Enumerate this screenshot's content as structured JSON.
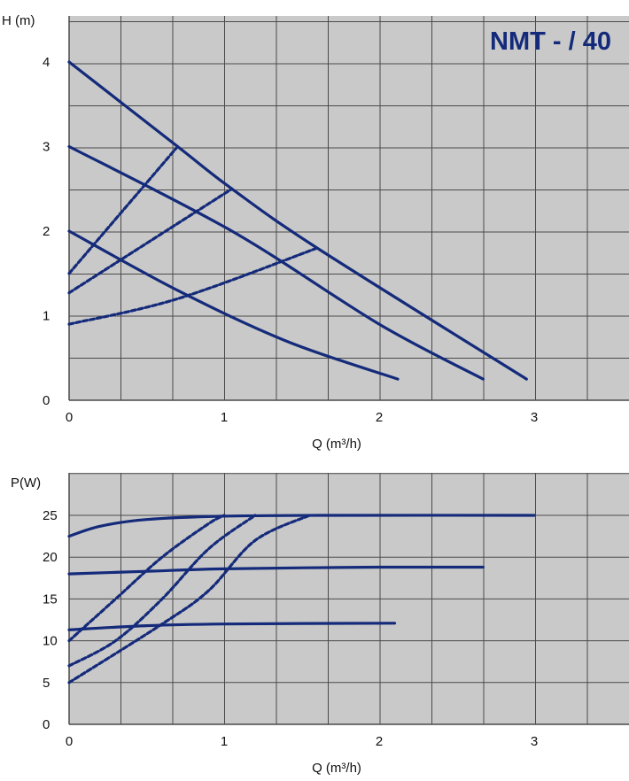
{
  "colors": {
    "plot_bg": "#c9c9c9",
    "grid": "#4a4a4a",
    "curve": "#142a7a",
    "text": "#111111"
  },
  "chart_data": [
    {
      "type": "line",
      "title": "NMT - / 40",
      "ylabel": "H (m)",
      "xlabel": "Q (m³/h)",
      "xlim": [
        0,
        3.6
      ],
      "ylim": [
        0,
        4.2
      ],
      "x_ticks": [
        "0",
        "1",
        "2",
        "3"
      ],
      "y_ticks": [
        "0",
        "1",
        "2",
        "3",
        "4"
      ],
      "grid": true,
      "series": [
        {
          "style": "solid",
          "points": [
            [
              0,
              4.0
            ],
            [
              0.7,
              3.0
            ],
            [
              1.05,
              2.5
            ],
            [
              1.6,
              1.8
            ],
            [
              2.95,
              0.25
            ]
          ]
        },
        {
          "style": "solid",
          "points": [
            [
              0,
              3.0
            ],
            [
              1.05,
              2.0
            ],
            [
              2.0,
              0.9
            ],
            [
              2.67,
              0.25
            ]
          ]
        },
        {
          "style": "solid",
          "points": [
            [
              0,
              2.0
            ],
            [
              0.7,
              1.3
            ],
            [
              1.4,
              0.7
            ],
            [
              2.12,
              0.25
            ]
          ]
        },
        {
          "style": "dashed",
          "points": [
            [
              0,
              1.5
            ],
            [
              0.7,
              3.0
            ]
          ]
        },
        {
          "style": "dashed",
          "points": [
            [
              0,
              1.27
            ],
            [
              1.05,
              2.5
            ]
          ]
        },
        {
          "style": "dashed",
          "points": [
            [
              0,
              0.9
            ],
            [
              0.7,
              1.2
            ],
            [
              1.6,
              1.8
            ]
          ]
        }
      ]
    },
    {
      "type": "line",
      "title": "",
      "ylabel": "P(W)",
      "xlabel": "Q (m³/h)",
      "xlim": [
        0,
        3.6
      ],
      "ylim": [
        0,
        28
      ],
      "x_ticks": [
        "0",
        "1",
        "2",
        "3"
      ],
      "y_ticks": [
        "0",
        "5",
        "10",
        "15",
        "20",
        "25"
      ],
      "grid": true,
      "series": [
        {
          "style": "solid",
          "points": [
            [
              0,
              22.5
            ],
            [
              0.2,
              23.7
            ],
            [
              0.5,
              24.5
            ],
            [
              1.0,
              24.9
            ],
            [
              1.6,
              25.0
            ],
            [
              3.0,
              25.0
            ]
          ]
        },
        {
          "style": "solid",
          "points": [
            [
              0,
              18.0
            ],
            [
              0.5,
              18.3
            ],
            [
              1.0,
              18.6
            ],
            [
              2.0,
              18.8
            ],
            [
              2.67,
              18.8
            ]
          ]
        },
        {
          "style": "solid",
          "points": [
            [
              0,
              11.3
            ],
            [
              0.5,
              11.8
            ],
            [
              1.0,
              12.0
            ],
            [
              2.1,
              12.1
            ]
          ]
        },
        {
          "style": "dashed",
          "points": [
            [
              0,
              10.0
            ],
            [
              0.3,
              15.0
            ],
            [
              0.6,
              20.0
            ],
            [
              0.9,
              24.0
            ],
            [
              1.0,
              25.0
            ]
          ]
        },
        {
          "style": "dashed",
          "points": [
            [
              0,
              7.0
            ],
            [
              0.3,
              10.0
            ],
            [
              0.6,
              15.0
            ],
            [
              0.9,
              21.0
            ],
            [
              1.2,
              25.0
            ]
          ]
        },
        {
          "style": "dashed",
          "points": [
            [
              0,
              5.0
            ],
            [
              0.6,
              12.0
            ],
            [
              0.9,
              16.0
            ],
            [
              1.2,
              22.0
            ],
            [
              1.55,
              25.0
            ]
          ]
        }
      ]
    }
  ]
}
